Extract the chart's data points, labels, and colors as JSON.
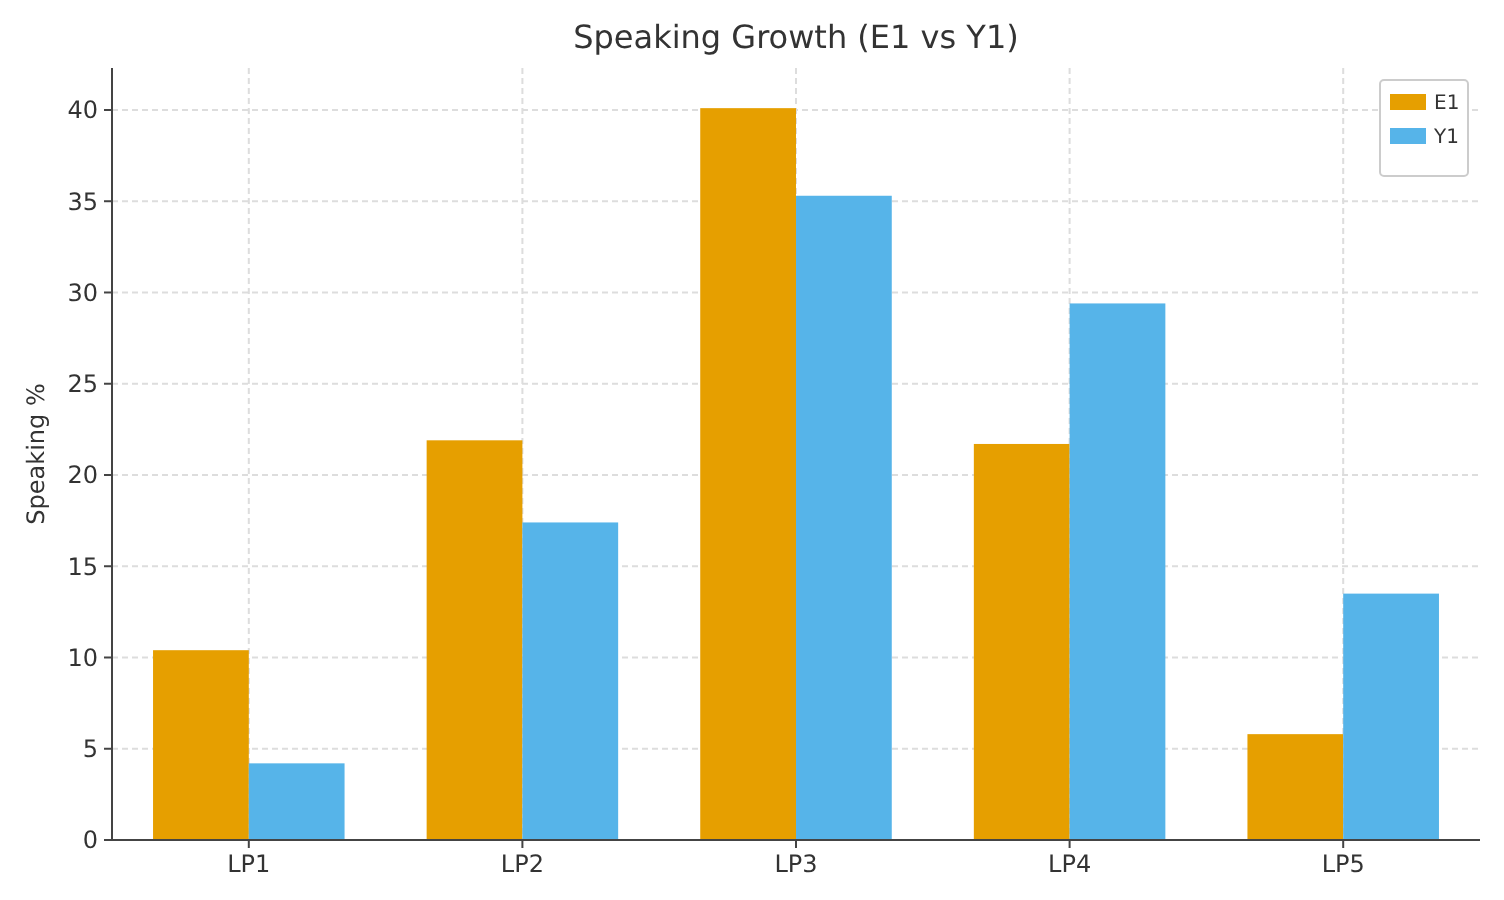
{
  "chart_data": {
    "type": "bar",
    "title": "Speaking Growth (E1 vs Y1)",
    "ylabel": "Speaking %",
    "categories": [
      "LP1",
      "LP2",
      "LP3",
      "LP4",
      "LP5"
    ],
    "series": [
      {
        "name": "E1",
        "color": "#e69f00",
        "values": [
          10.4,
          21.9,
          40.1,
          21.7,
          5.8
        ]
      },
      {
        "name": "Y1",
        "color": "#56b4e9",
        "values": [
          4.2,
          17.4,
          35.3,
          29.4,
          13.5
        ]
      }
    ],
    "ylim": [
      0,
      42.3
    ],
    "yticks": [
      0,
      5,
      10,
      15,
      20,
      25,
      30,
      35,
      40
    ],
    "grid": true,
    "legend": "top right"
  }
}
